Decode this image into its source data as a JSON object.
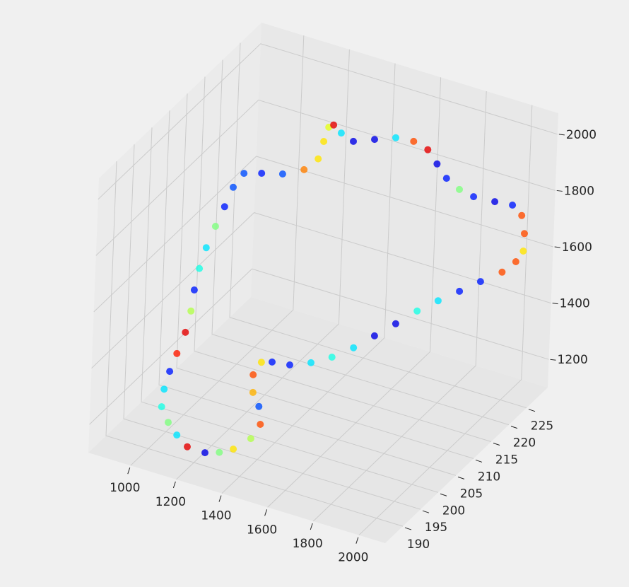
{
  "chart_data": {
    "type": "scatter3d",
    "colormap": "jet",
    "grid": true,
    "xlim": [
      815,
      2115
    ],
    "ylim": [
      185,
      231
    ],
    "zlim": [
      1100,
      2075
    ],
    "xticks": [
      1000,
      1200,
      1400,
      1600,
      1800,
      2000
    ],
    "yticks": [
      190,
      195,
      200,
      205,
      210,
      215,
      220,
      225
    ],
    "zticks": [
      1200,
      1400,
      1600,
      1800,
      2000
    ],
    "series": [
      {
        "x": [
          1227,
          1173,
          1136,
          1104,
          1076,
          1072,
          1077,
          1086,
          1097,
          1100,
          1096,
          1097,
          1104,
          1117,
          1131,
          1143,
          1165,
          1215,
          1275,
          1333,
          1366,
          1371,
          1377,
          1389,
          1416,
          1455,
          1514,
          1573,
          1626,
          1671,
          1706,
          1742,
          1785,
          1830,
          1893,
          1945,
          1978,
          1997,
          2004,
          1990,
          1957,
          1902,
          1848,
          1794,
          1740,
          1688,
          1635,
          1583,
          1528,
          1472,
          1413,
          1361,
          1331,
          1315,
          1326,
          1351,
          1366,
          1348,
          1305,
          1267
        ],
        "y": [
          191.3,
          189.7,
          189.0,
          188.5,
          188.3,
          189.1,
          190.2,
          191.5,
          193.0,
          194.2,
          195.2,
          196.4,
          197.7,
          199.3,
          200.8,
          202.3,
          203.8,
          205.6,
          207.7,
          210.0,
          211.8,
          212.9,
          213.8,
          214.4,
          214.9,
          215.9,
          218.1,
          220.3,
          222.0,
          223.2,
          223.7,
          224.2,
          225.2,
          226.4,
          228.4,
          230.1,
          230.7,
          230.4,
          229.8,
          228.7,
          227.0,
          224.5,
          222.1,
          219.6,
          217.2,
          214.6,
          212.1,
          209.6,
          207.1,
          204.8,
          202.6,
          200.9,
          199.8,
          198.6,
          198.0,
          198.2,
          197.8,
          196.4,
          194.3,
          192.8
        ],
        "z": [
          1126,
          1153,
          1194,
          1237,
          1288,
          1340,
          1391,
          1441,
          1501,
          1563,
          1625,
          1687,
          1747,
          1807,
          1862,
          1916,
          1953,
          1944,
          1931,
          1933,
          1958,
          2008,
          2049,
          2053,
          2025,
          1993,
          1988,
          1982,
          1962,
          1929,
          1881,
          1833,
          1792,
          1763,
          1737,
          1717,
          1681,
          1625,
          1572,
          1544,
          1519,
          1502,
          1483,
          1466,
          1445,
          1418,
          1392,
          1367,
          1350,
          1344,
          1348,
          1366,
          1371,
          1337,
          1284,
          1238,
          1183,
          1145,
          1122,
          1119
        ],
        "c": [
          0.1,
          0.9,
          0.35,
          0.5,
          0.4,
          0.35,
          0.15,
          0.85,
          0.9,
          0.55,
          0.15,
          0.4,
          0.35,
          0.5,
          0.15,
          0.2,
          0.2,
          0.15,
          0.2,
          0.75,
          0.65,
          0.65,
          0.6,
          0.9,
          0.35,
          0.1,
          0.1,
          0.35,
          0.8,
          0.9,
          0.1,
          0.15,
          0.5,
          0.15,
          0.1,
          0.15,
          0.8,
          0.8,
          0.65,
          0.8,
          0.8,
          0.15,
          0.15,
          0.35,
          0.4,
          0.1,
          0.1,
          0.35,
          0.4,
          0.35,
          0.15,
          0.15,
          0.65,
          0.8,
          0.7,
          0.2,
          0.8,
          0.55,
          0.65,
          0.5
        ]
      }
    ]
  }
}
